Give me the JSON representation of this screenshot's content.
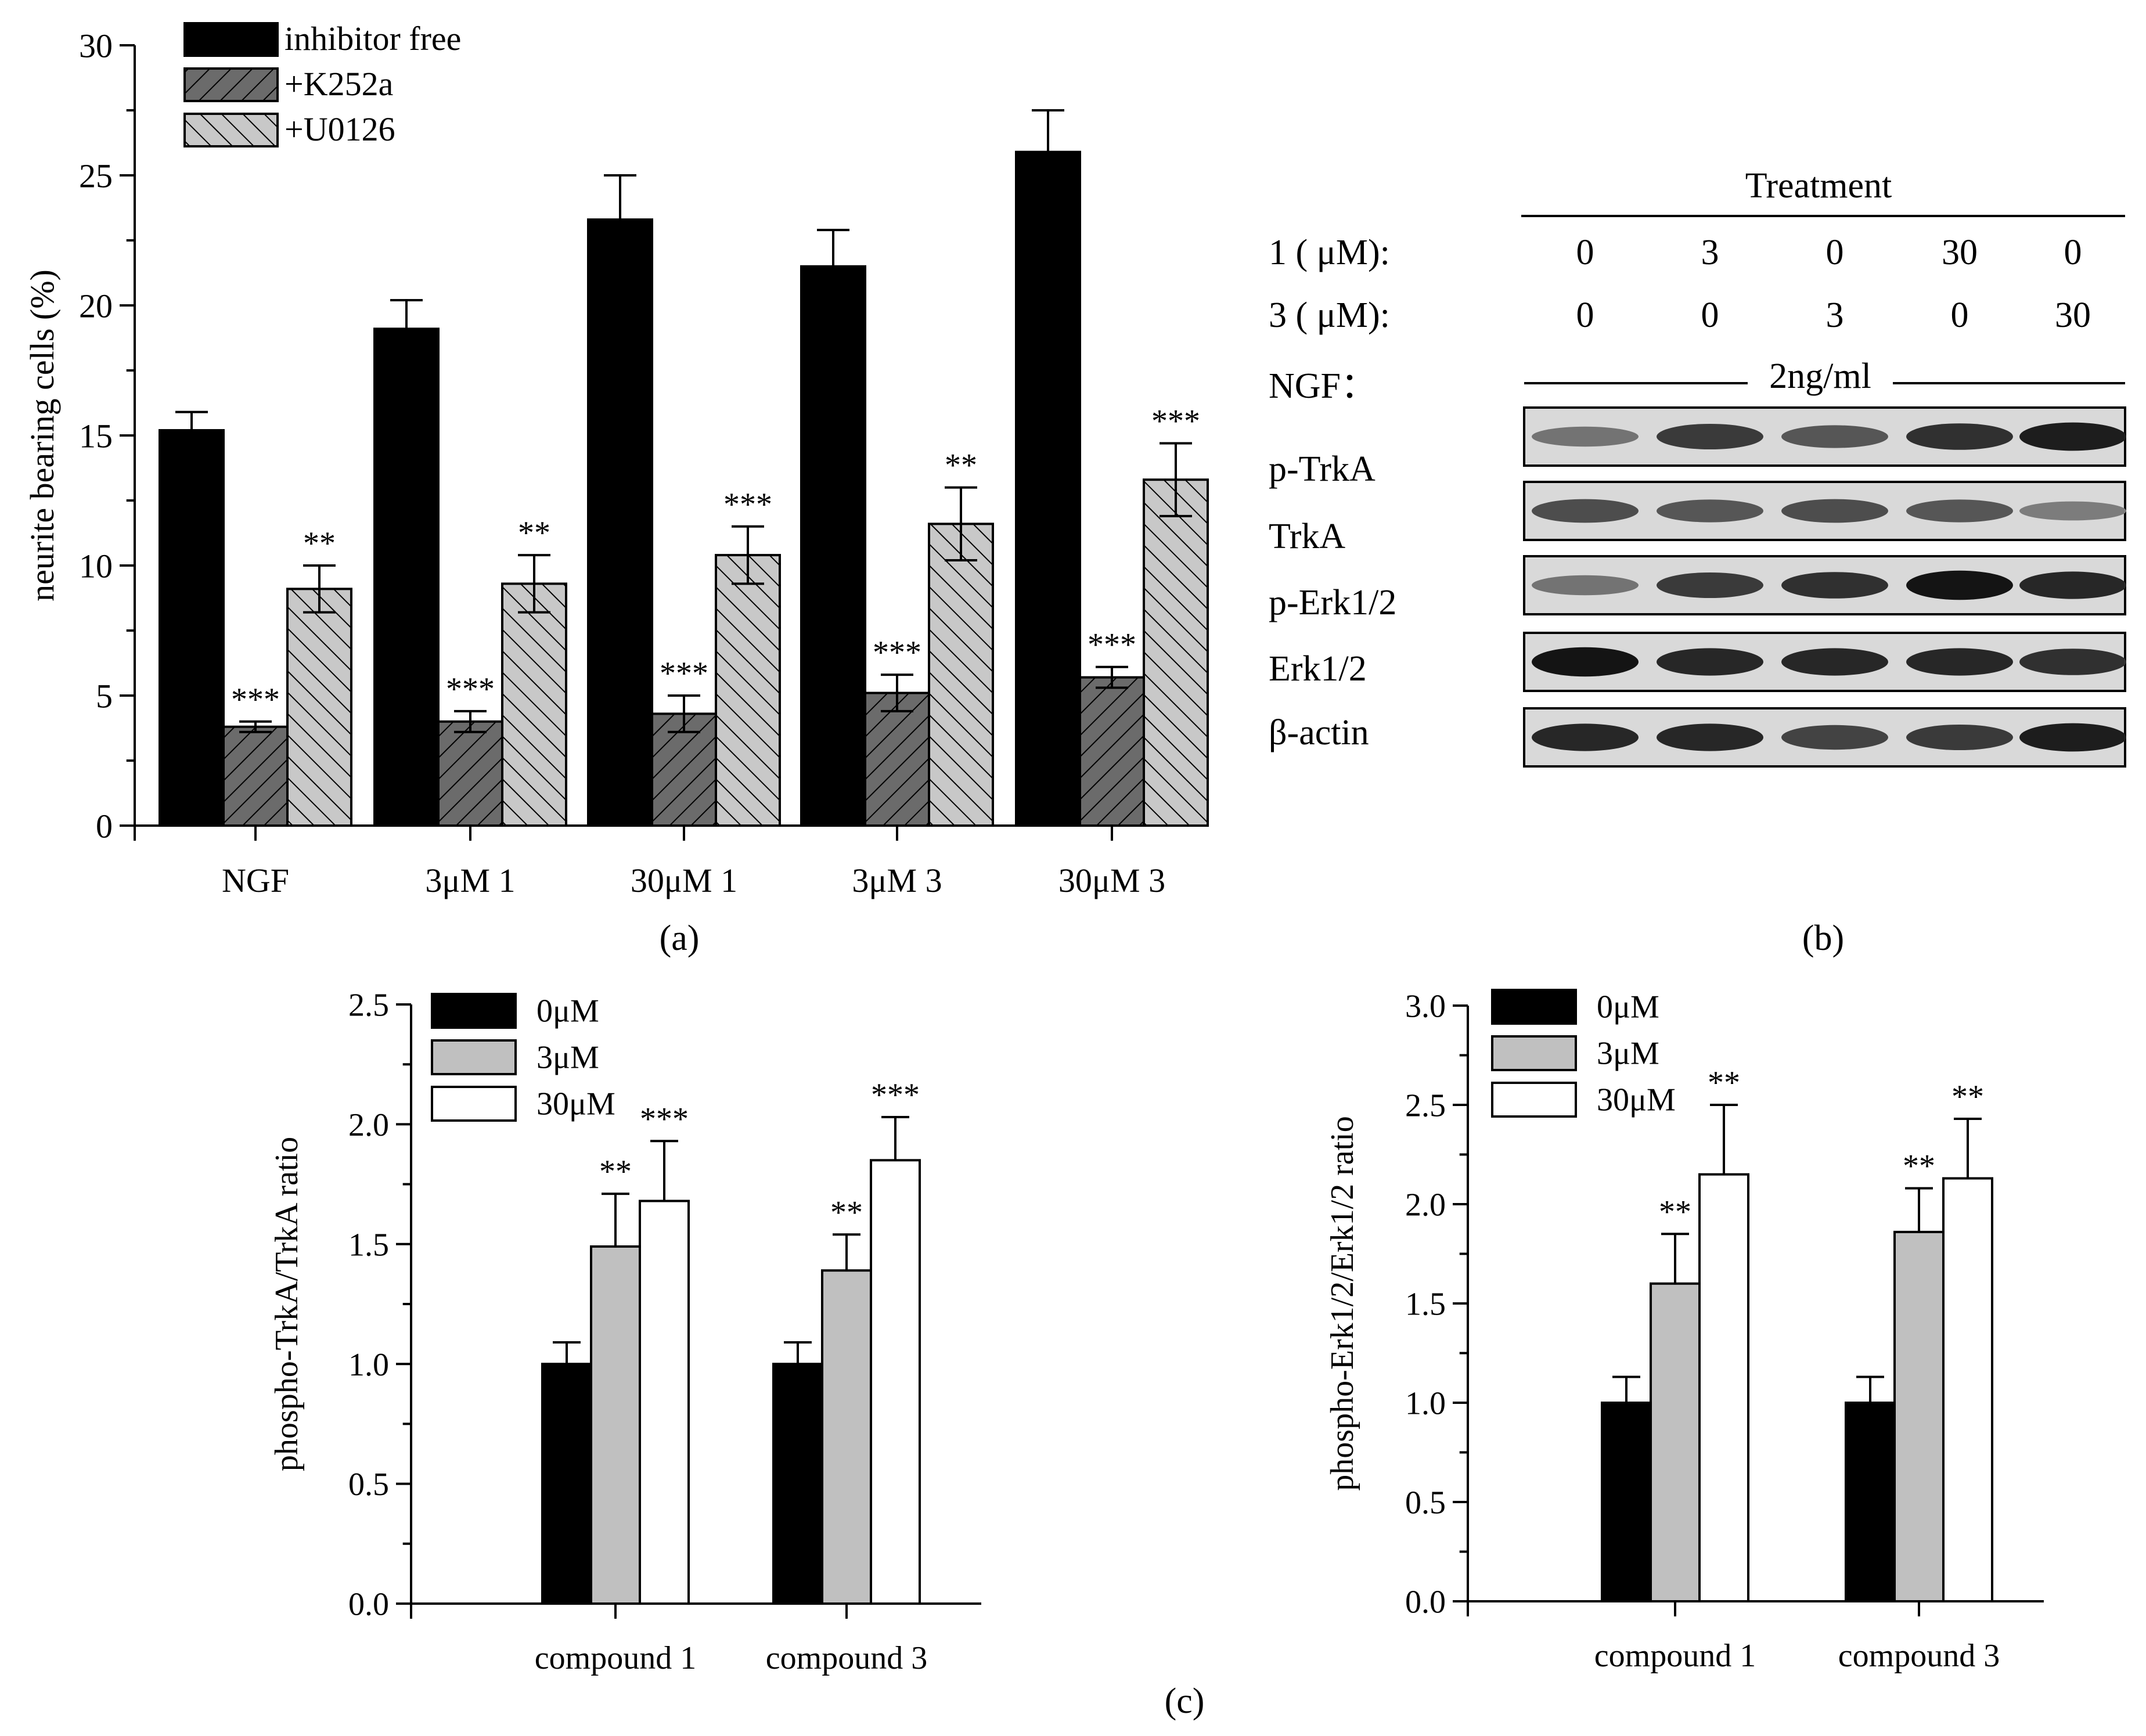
{
  "panel_labels": {
    "a": "(a)",
    "b": "(b)",
    "c": "(c)"
  },
  "colors": {
    "black": "#000000",
    "dark_gray": "#6b6b6b",
    "light_gray": "#c8c8c8",
    "white": "#ffffff"
  },
  "chart_data": [
    {
      "id": "panel_a",
      "type": "bar",
      "title": "",
      "xlabel": "",
      "ylabel": "neurite bearing cells (%)",
      "ylim": [
        0,
        30
      ],
      "yticks": [
        "0",
        "5",
        "10",
        "15",
        "20",
        "25",
        "30"
      ],
      "categories": [
        "NGF",
        "3μM 1",
        "30μM 1",
        "3μM 3",
        "30μM 3"
      ],
      "legend_position": "top-left",
      "series": [
        {
          "name": "inhibitor free",
          "pattern": "solid-black",
          "values": [
            15.2,
            19.1,
            23.3,
            21.5,
            25.9
          ],
          "errors": [
            0.7,
            1.1,
            1.7,
            1.4,
            1.6
          ],
          "annotations": [
            "",
            "",
            "",
            "",
            ""
          ]
        },
        {
          "name": "+K252a",
          "pattern": "hatch-dark",
          "values": [
            3.8,
            4.0,
            4.3,
            5.1,
            5.7
          ],
          "errors": [
            0.2,
            0.4,
            0.7,
            0.7,
            0.4
          ],
          "annotations": [
            "***",
            "***",
            "***",
            "***",
            "***"
          ]
        },
        {
          "name": "+U0126",
          "pattern": "hatch-light",
          "values": [
            9.1,
            9.3,
            10.4,
            11.6,
            13.3
          ],
          "errors": [
            0.9,
            1.1,
            1.1,
            1.4,
            1.4
          ],
          "annotations": [
            "**",
            "**",
            "***",
            "**",
            "***"
          ]
        }
      ]
    },
    {
      "id": "panel_c_left",
      "type": "bar",
      "title": "",
      "xlabel": "",
      "ylabel": "phospho-TrkA/TrkA ratio",
      "ylim": [
        0,
        2.5
      ],
      "yticks": [
        "0.0",
        "0.5",
        "1.0",
        "1.5",
        "2.0",
        "2.5"
      ],
      "categories": [
        "compound 1",
        "compound 3"
      ],
      "legend_position": "top-left",
      "series": [
        {
          "name": "0μM",
          "pattern": "solid-black",
          "values": [
            1.0,
            1.0
          ],
          "errors": [
            0.09,
            0.09
          ],
          "annotations": [
            "",
            ""
          ]
        },
        {
          "name": "3μM",
          "pattern": "solid-gray",
          "values": [
            1.49,
            1.39
          ],
          "errors": [
            0.22,
            0.15
          ],
          "annotations": [
            "**",
            "**"
          ]
        },
        {
          "name": "30μM",
          "pattern": "solid-white",
          "values": [
            1.68,
            1.85
          ],
          "errors": [
            0.25,
            0.18
          ],
          "annotations": [
            "***",
            "***"
          ]
        }
      ]
    },
    {
      "id": "panel_c_right",
      "type": "bar",
      "title": "",
      "xlabel": "",
      "ylabel": "phospho-Erk1/2/Erk1/2 ratio",
      "ylim": [
        0,
        3.0
      ],
      "yticks": [
        "0.0",
        "0.5",
        "1.0",
        "1.5",
        "2.0",
        "2.5",
        "3.0"
      ],
      "categories": [
        "compound 1",
        "compound 3"
      ],
      "legend_position": "top-left",
      "series": [
        {
          "name": "0μM",
          "pattern": "solid-black",
          "values": [
            1.0,
            1.0
          ],
          "errors": [
            0.13,
            0.13
          ],
          "annotations": [
            "",
            ""
          ]
        },
        {
          "name": "3μM",
          "pattern": "solid-gray",
          "values": [
            1.6,
            1.86
          ],
          "errors": [
            0.25,
            0.22
          ],
          "annotations": [
            "**",
            "**"
          ]
        },
        {
          "name": "30μM",
          "pattern": "solid-white",
          "values": [
            2.15,
            2.13
          ],
          "errors": [
            0.35,
            0.3
          ],
          "annotations": [
            "**",
            "**"
          ]
        }
      ]
    }
  ],
  "western_blot": {
    "header": "Treatment",
    "rows": [
      {
        "label": "1 ( μM):",
        "values": [
          "0",
          "3",
          "0",
          "30",
          "0"
        ]
      },
      {
        "label": "3 ( μM):",
        "values": [
          "0",
          "0",
          "3",
          "0",
          "30"
        ]
      }
    ],
    "ngf": {
      "label": "NGF：",
      "value": "2ng/ml"
    },
    "bands": [
      {
        "label": "p-TrkA",
        "intensities": [
          0.45,
          0.75,
          0.6,
          0.8,
          0.9
        ]
      },
      {
        "label": "TrkA",
        "intensities": [
          0.65,
          0.6,
          0.65,
          0.6,
          0.4
        ]
      },
      {
        "label": "p-Erk1/2",
        "intensities": [
          0.45,
          0.75,
          0.8,
          0.95,
          0.85
        ]
      },
      {
        "label": "Erk1/2",
        "intensities": [
          0.95,
          0.85,
          0.85,
          0.85,
          0.8
        ]
      },
      {
        "label": "β-actin",
        "intensities": [
          0.85,
          0.85,
          0.7,
          0.75,
          0.9
        ]
      }
    ]
  }
}
